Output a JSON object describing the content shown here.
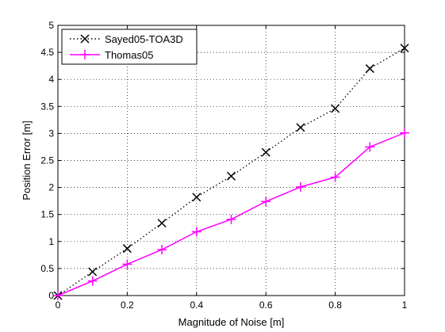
{
  "chart_data": {
    "type": "line",
    "xlabel": "Magnitude of Noise [m]",
    "ylabel": "Position Error [m]",
    "xlim": [
      0,
      1
    ],
    "ylim": [
      0,
      5
    ],
    "xticks": [
      "0",
      "0.2",
      "0.4",
      "0.6",
      "0.8",
      "1"
    ],
    "yticks": [
      "0",
      "0.5",
      "1",
      "1.5",
      "2",
      "2.5",
      "3",
      "3.5",
      "4",
      "4.5",
      "5"
    ],
    "grid": true,
    "legend_position": "top-left",
    "x": [
      0,
      0.1,
      0.2,
      0.3,
      0.4,
      0.5,
      0.6,
      0.7,
      0.8,
      0.9,
      1.0
    ],
    "series": [
      {
        "name": "Sayed05-TOA3D",
        "values": [
          0,
          0.44,
          0.87,
          1.34,
          1.82,
          2.21,
          2.65,
          3.11,
          3.46,
          4.2,
          4.58
        ],
        "color": "#000000",
        "line_style": "dotted",
        "marker": "x-icon"
      },
      {
        "name": "Thomas05",
        "values": [
          0,
          0.27,
          0.58,
          0.85,
          1.18,
          1.41,
          1.74,
          2.01,
          2.19,
          2.75,
          3.01
        ],
        "color": "#ff00ff",
        "line_style": "solid",
        "marker": "plus-icon"
      }
    ]
  }
}
